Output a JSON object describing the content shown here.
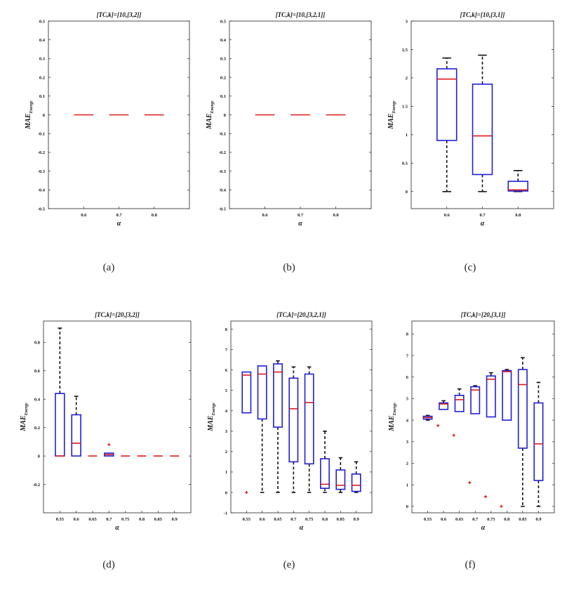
{
  "colors": {
    "box": "#1f1fd6",
    "median": "#e01818",
    "whisker": "#111111",
    "outlier": "#e01818",
    "axis": "#222222"
  },
  "chart_data": [
    {
      "id": "a",
      "caption": "(a)",
      "type": "box",
      "title": "[TC,k]=[10,[3,2]]",
      "xlabel": "α",
      "ylabel_main": "MAE",
      "ylabel_sub": "Energy",
      "categories": [
        "0.6",
        "0.7",
        "0.8"
      ],
      "ylim": [
        -0.5,
        0.5
      ],
      "yticks": [
        "-0.5",
        "-0.4",
        "-0.3",
        "-0.2",
        "-0.1",
        "0",
        "0.1",
        "0.2",
        "0.3",
        "0.4",
        "0.5"
      ],
      "ytick_values": [
        -0.5,
        -0.4,
        -0.3,
        -0.2,
        -0.1,
        0,
        0.1,
        0.2,
        0.3,
        0.4,
        0.5
      ],
      "boxes": [
        {
          "lw": 0,
          "q1": 0,
          "med": 0,
          "q3": 0,
          "uw": 0,
          "outliers": []
        },
        {
          "lw": 0,
          "q1": 0,
          "med": 0,
          "q3": 0,
          "uw": 0,
          "outliers": []
        },
        {
          "lw": 0,
          "q1": 0,
          "med": 0,
          "q3": 0,
          "uw": 0,
          "outliers": []
        }
      ]
    },
    {
      "id": "b",
      "caption": "(b)",
      "type": "box",
      "title": "[TC,k]=[10,[3,2,1]]",
      "xlabel": "α",
      "ylabel_main": "MAE",
      "ylabel_sub": "Energy",
      "categories": [
        "0.6",
        "0.7",
        "0.8"
      ],
      "ylim": [
        -0.5,
        0.5
      ],
      "yticks": [
        "-0.5",
        "-0.4",
        "-0.3",
        "-0.2",
        "-0.1",
        "0",
        "0.1",
        "0.2",
        "0.3",
        "0.4",
        "0.5"
      ],
      "ytick_values": [
        -0.5,
        -0.4,
        -0.3,
        -0.2,
        -0.1,
        0,
        0.1,
        0.2,
        0.3,
        0.4,
        0.5
      ],
      "boxes": [
        {
          "lw": 0,
          "q1": 0,
          "med": 0,
          "q3": 0,
          "uw": 0,
          "outliers": []
        },
        {
          "lw": 0,
          "q1": 0,
          "med": 0,
          "q3": 0,
          "uw": 0,
          "outliers": []
        },
        {
          "lw": 0,
          "q1": 0,
          "med": 0,
          "q3": 0,
          "uw": 0,
          "outliers": []
        }
      ]
    },
    {
      "id": "c",
      "caption": "(c)",
      "type": "box",
      "title": "[TC,k]=[10,[3,1]]",
      "xlabel": "α",
      "ylabel_main": "MAE",
      "ylabel_sub": "Energy",
      "categories": [
        "0.6",
        "0.7",
        "0.8"
      ],
      "ylim": [
        -0.3,
        3
      ],
      "yticks": [
        "0",
        "0.5",
        "1",
        "1.5",
        "2",
        "2.5",
        "3"
      ],
      "ytick_values": [
        0,
        0.5,
        1,
        1.5,
        2,
        2.5,
        3
      ],
      "boxes": [
        {
          "lw": 0,
          "q1": 0.9,
          "med": 1.98,
          "q3": 2.16,
          "uw": 2.35,
          "outliers": []
        },
        {
          "lw": 0,
          "q1": 0.3,
          "med": 0.98,
          "q3": 1.89,
          "uw": 2.4,
          "outliers": []
        },
        {
          "lw": 0,
          "q1": 0.01,
          "med": 0.03,
          "q3": 0.18,
          "uw": 0.37,
          "outliers": []
        }
      ]
    },
    {
      "id": "d",
      "caption": "(d)",
      "type": "box",
      "title": "[TC,k]=[20,[3,2]]",
      "xlabel": "α",
      "ylabel_main": "MAE",
      "ylabel_sub": "Energy",
      "categories": [
        "0.55",
        "0.6",
        "0.65",
        "0.7",
        "0.75",
        "0.8",
        "0.85",
        "0.9"
      ],
      "ylim": [
        -0.4,
        0.95
      ],
      "yticks": [
        "-0.2",
        "0",
        "0.2",
        "0.4",
        "0.6",
        "0.8"
      ],
      "ytick_values": [
        -0.2,
        0,
        0.2,
        0.4,
        0.6,
        0.8
      ],
      "boxes": [
        {
          "lw": 0,
          "q1": 0,
          "med": 0,
          "q3": 0.44,
          "uw": 0.9,
          "outliers": []
        },
        {
          "lw": 0,
          "q1": 0,
          "med": 0.09,
          "q3": 0.29,
          "uw": 0.42,
          "outliers": []
        },
        {
          "lw": 0,
          "q1": 0,
          "med": 0,
          "q3": 0,
          "uw": 0,
          "outliers": []
        },
        {
          "lw": 0,
          "q1": 0,
          "med": 0.01,
          "q3": 0.02,
          "uw": 0.02,
          "outliers": [
            0.08
          ]
        },
        {
          "lw": 0,
          "q1": 0,
          "med": 0,
          "q3": 0,
          "uw": 0,
          "outliers": []
        },
        {
          "lw": 0,
          "q1": 0,
          "med": 0,
          "q3": 0,
          "uw": 0,
          "outliers": []
        },
        {
          "lw": 0,
          "q1": 0,
          "med": 0,
          "q3": 0,
          "uw": 0,
          "outliers": []
        },
        {
          "lw": 0,
          "q1": 0,
          "med": 0,
          "q3": 0,
          "uw": 0,
          "outliers": []
        }
      ]
    },
    {
      "id": "e",
      "caption": "(e)",
      "type": "box",
      "title": "[TC,k]=[20,[3,2,1]]",
      "xlabel": "α",
      "ylabel_main": "MAE",
      "ylabel_sub": "Energy",
      "categories": [
        "0.55",
        "0.6",
        "0.65",
        "0.7",
        "0.75",
        "0.8",
        "0.85",
        "0.9"
      ],
      "ylim": [
        -1,
        8.4
      ],
      "yticks": [
        "-1",
        "0",
        "1",
        "2",
        "3",
        "4",
        "5",
        "6",
        "7",
        "8"
      ],
      "ytick_values": [
        -1,
        0,
        1,
        2,
        3,
        4,
        5,
        6,
        7,
        8
      ],
      "boxes": [
        {
          "lw": 3.9,
          "q1": 3.9,
          "med": 5.75,
          "q3": 5.9,
          "uw": 5.9,
          "outliers": [
            0
          ]
        },
        {
          "lw": 0,
          "q1": 3.6,
          "med": 5.8,
          "q3": 6.2,
          "uw": 6.2,
          "outliers": []
        },
        {
          "lw": 0,
          "q1": 3.2,
          "med": 5.9,
          "q3": 6.3,
          "uw": 6.45,
          "outliers": []
        },
        {
          "lw": 0,
          "q1": 1.5,
          "med": 4.1,
          "q3": 5.6,
          "uw": 6.15,
          "outliers": []
        },
        {
          "lw": 0,
          "q1": 1.4,
          "med": 4.4,
          "q3": 5.8,
          "uw": 6.15,
          "outliers": []
        },
        {
          "lw": 0,
          "q1": 0.2,
          "med": 0.4,
          "q3": 1.65,
          "uw": 3.0,
          "outliers": []
        },
        {
          "lw": 0,
          "q1": 0.15,
          "med": 0.35,
          "q3": 1.1,
          "uw": 1.7,
          "outliers": []
        },
        {
          "lw": 0,
          "q1": 0.05,
          "med": 0.35,
          "q3": 0.9,
          "uw": 1.5,
          "outliers": []
        }
      ]
    },
    {
      "id": "f",
      "caption": "(f)",
      "type": "box",
      "title": "[TC,k]=[20,[3,1]]",
      "xlabel": "α",
      "ylabel_main": "MAE",
      "ylabel_sub": "Energy",
      "categories": [
        "0.55",
        "0.6",
        "0.65",
        "0.7",
        "0.75",
        "0.8",
        "0.85",
        "0.9"
      ],
      "ylim": [
        -0.3,
        8.6
      ],
      "yticks": [
        "0",
        "1",
        "2",
        "3",
        "4",
        "5",
        "6",
        "7",
        "8"
      ],
      "ytick_values": [
        0,
        1,
        2,
        3,
        4,
        5,
        6,
        7,
        8
      ],
      "boxes": [
        {
          "lw": 4.0,
          "q1": 4.05,
          "med": 4.12,
          "q3": 4.18,
          "uw": 4.22,
          "outliers": []
        },
        {
          "lw": 4.5,
          "q1": 4.5,
          "med": 4.75,
          "q3": 4.8,
          "uw": 4.9,
          "outliers": [
            3.75
          ]
        },
        {
          "lw": 4.4,
          "q1": 4.4,
          "med": 4.95,
          "q3": 5.15,
          "uw": 5.45,
          "outliers": [
            3.3
          ]
        },
        {
          "lw": 4.3,
          "q1": 4.3,
          "med": 5.4,
          "q3": 5.55,
          "uw": 5.6,
          "outliers": [
            1.1
          ]
        },
        {
          "lw": 4.15,
          "q1": 4.15,
          "med": 5.9,
          "q3": 6.05,
          "uw": 6.2,
          "outliers": [
            0.45
          ]
        },
        {
          "lw": 4.0,
          "q1": 4.0,
          "med": 6.25,
          "q3": 6.3,
          "uw": 6.35,
          "outliers": [
            0
          ]
        },
        {
          "lw": 0,
          "q1": 2.7,
          "med": 5.65,
          "q3": 6.35,
          "uw": 6.9,
          "outliers": []
        },
        {
          "lw": 0,
          "q1": 1.2,
          "med": 2.9,
          "q3": 4.8,
          "uw": 5.75,
          "outliers": []
        }
      ]
    }
  ]
}
